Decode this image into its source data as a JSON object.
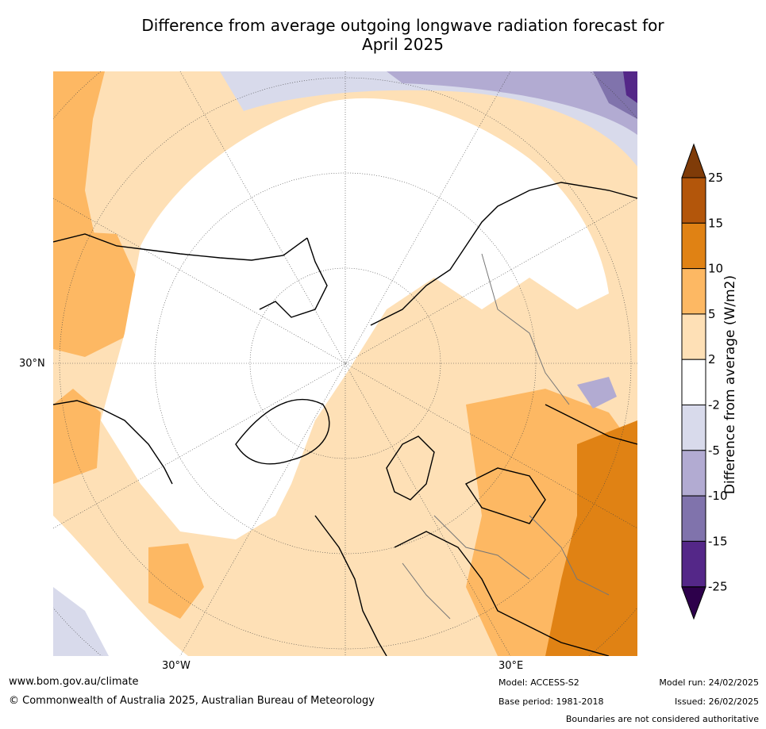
{
  "title_line1": "Difference from average outgoing longwave radiation forecast for",
  "title_line2": "April 2025",
  "ticks": {
    "lat": "30°N",
    "lon_left": "30°W",
    "lon_right": "30°E"
  },
  "colorbar": {
    "label": "Difference from average (W/m2)",
    "levels": [
      "25",
      "15",
      "10",
      "5",
      "2",
      "-2",
      "-5",
      "-10",
      "-15",
      "-25"
    ],
    "colors": [
      "#b3560b",
      "#e08214",
      "#fdb863",
      "#fee0b6",
      "#ffffff",
      "#d8daeb",
      "#b2abd2",
      "#8073ac",
      "#542788"
    ],
    "over_color": "#7f3b08",
    "under_color": "#2d004b"
  },
  "footer": {
    "website": "www.bom.gov.au/climate",
    "copyright": "© Commonwealth of Australia 2025, Australian Bureau of Meteorology",
    "model": "Model: ACCESS-S2",
    "base_period": "Base period: 1981-2018",
    "model_run": "Model run: 24/02/2025",
    "issued": "Issued: 26/02/2025",
    "disclaimer": "Boundaries are not considered authoritative"
  }
}
